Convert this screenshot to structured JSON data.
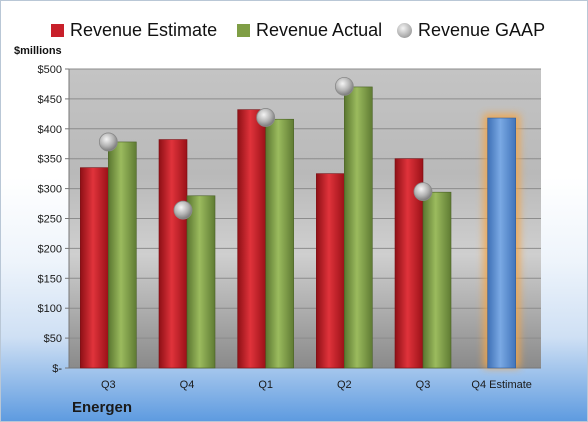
{
  "unit_label": "$millions",
  "company": "Energen",
  "colors": {
    "estimate": "#c8202a",
    "actual": "#7f9e45",
    "gaap": "#b0b0b0",
    "q4_estimate": "#5b8fd1",
    "q4_glow": "#f3a64a"
  },
  "chart_data": {
    "type": "bar",
    "title": "",
    "xlabel": "",
    "ylabel": "$millions",
    "ylim": [
      0,
      500
    ],
    "y_ticks": [
      "$-",
      "$50",
      "$100",
      "$150",
      "$200",
      "$250",
      "$300",
      "$350",
      "$400",
      "$450",
      "$500"
    ],
    "categories": [
      "Q3",
      "Q4",
      "Q1",
      "Q2",
      "Q3",
      "Q4 Estimate"
    ],
    "legend_position": "top",
    "grid": true,
    "series": [
      {
        "name": "Revenue Estimate",
        "type": "bar",
        "values": [
          335,
          382,
          432,
          325,
          350,
          null
        ]
      },
      {
        "name": "Revenue Actual",
        "type": "bar",
        "values": [
          378,
          288,
          416,
          470,
          294,
          418
        ]
      },
      {
        "name": "Revenue GAAP",
        "type": "marker",
        "values": [
          378,
          264,
          419,
          471,
          295,
          null
        ]
      }
    ]
  }
}
